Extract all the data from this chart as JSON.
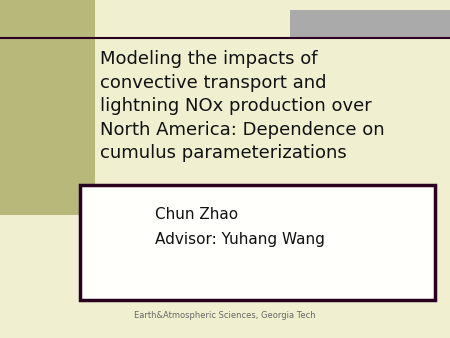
{
  "background_color": "#f0f0d0",
  "olive_bar_color": "#b8b87a",
  "gray_bar_color": "#aaaaaa",
  "dark_line_color": "#2a0020",
  "title_text": "Modeling the impacts of\nconvective transport and\nlightning NOx production over\nNorth America: Dependence on\ncumulus parameterizations",
  "author_line1": "Chun Zhao",
  "author_line2": "Advisor: Yuhang Wang",
  "footer_text": "Earth&Atmospheric Sciences, Georgia Tech",
  "title_color": "#111111",
  "author_color": "#111111",
  "footer_color": "#666666",
  "box_border_color": "#2a0020",
  "box_bg_color": "#fffffb",
  "title_fontsize": 13.0,
  "author_fontsize": 11.0,
  "footer_fontsize": 6.0
}
